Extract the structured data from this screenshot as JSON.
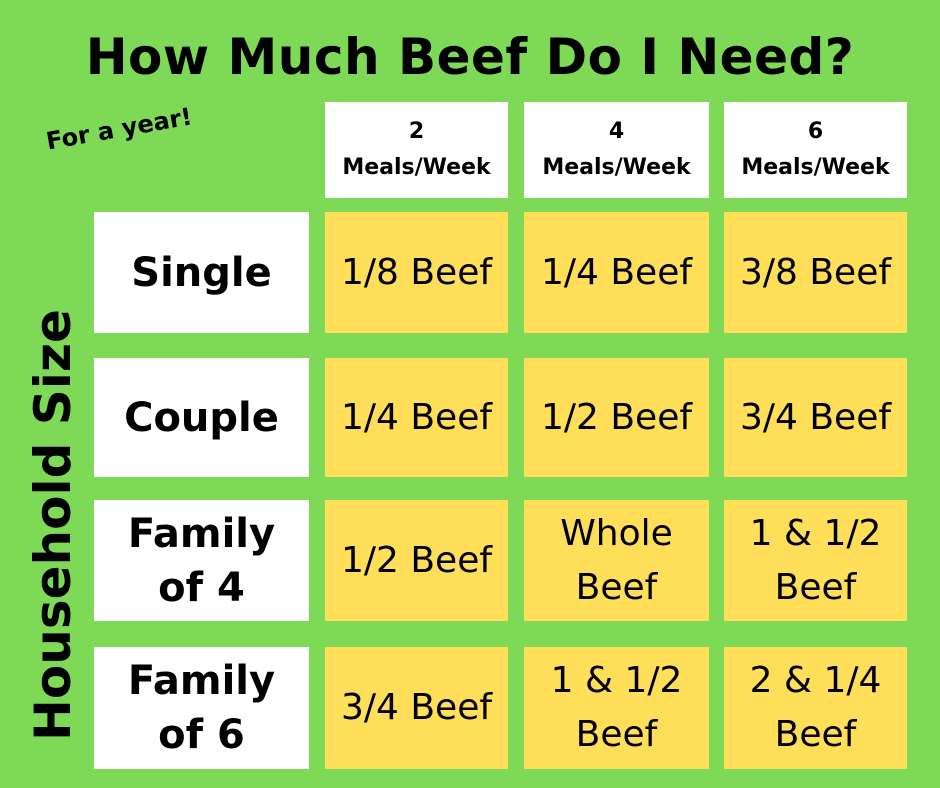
{
  "title": "How Much Beef Do I Need?",
  "subtitle": "For a year!",
  "side_label": "Household Size",
  "columns": [
    {
      "number": "2",
      "unit": "Meals/Week"
    },
    {
      "number": "4",
      "unit": "Meals/Week"
    },
    {
      "number": "6",
      "unit": "Meals/Week"
    }
  ],
  "rows": [
    {
      "label_lines": [
        "Single"
      ],
      "values": [
        [
          "1/8 Beef"
        ],
        [
          "1/4 Beef"
        ],
        [
          "3/8 Beef"
        ]
      ]
    },
    {
      "label_lines": [
        "Couple"
      ],
      "values": [
        [
          "1/4 Beef"
        ],
        [
          "1/2 Beef"
        ],
        [
          "3/4 Beef"
        ]
      ]
    },
    {
      "label_lines": [
        "Family",
        "of 4"
      ],
      "values": [
        [
          "1/2 Beef"
        ],
        [
          "Whole",
          "Beef"
        ],
        [
          "1 & 1/2",
          "Beef"
        ]
      ]
    },
    {
      "label_lines": [
        "Family",
        "of 6"
      ],
      "values": [
        [
          "3/4 Beef"
        ],
        [
          "1 & 1/2",
          "Beef"
        ],
        [
          "2 & 1/4",
          "Beef"
        ]
      ]
    }
  ]
}
